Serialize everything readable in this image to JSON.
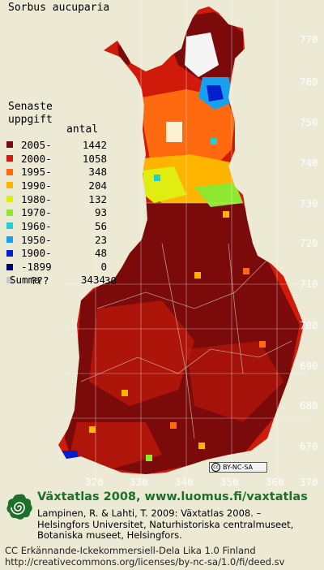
{
  "species": "Sorbus aucuparia",
  "legend": {
    "heading_line1": "Senaste",
    "heading_line2": "uppgift",
    "count_heading": "antal",
    "rows": [
      {
        "label": "2005-",
        "count": "1442",
        "color": "#7b0a0a"
      },
      {
        "label": "2000-",
        "count": "1058",
        "color": "#d01a0a"
      },
      {
        "label": "1995-",
        "count": "348",
        "color": "#ff6a10"
      },
      {
        "label": "1990-",
        "count": "204",
        "color": "#ffb400"
      },
      {
        "label": "1980-",
        "count": "132",
        "color": "#dfee10"
      },
      {
        "label": "1970-",
        "count": "93",
        "color": "#8fe830"
      },
      {
        "label": "1960-",
        "count": "56",
        "color": "#20d0d0"
      },
      {
        "label": "1950-",
        "count": "23",
        "color": "#18a0f0"
      },
      {
        "label": "1900-",
        "count": "48",
        "color": "#0020d0"
      },
      {
        "label": "-1899",
        "count": "0",
        "color": "#000070"
      },
      {
        "label": "???",
        "count": "30",
        "color": "#c8c8c8"
      }
    ],
    "summa_label": "Summa",
    "summa_value": "3434"
  },
  "grid": {
    "y_labels": [
      "770",
      "760",
      "750",
      "740",
      "730",
      "720",
      "710",
      "700",
      "690",
      "680",
      "670"
    ],
    "x_labels": [
      "320",
      "330",
      "340",
      "350",
      "360",
      "370"
    ]
  },
  "colors": {
    "background": "#ece9d5",
    "map_dark_red": "#7b0a0a",
    "map_red": "#d01a0a",
    "footer_green": "#1e6f2a"
  },
  "cc_badge": {
    "text": "BY-NC-SA",
    "cc": "cc"
  },
  "footer": {
    "title": "Växtatlas 2008, www.luomus.fi/vaxtatlas",
    "ref_line1": "Lampinen, R. & Lahti, T. 2009: Växtatlas 2008. –",
    "ref_line2": "Helsingfors Universitet, Naturhistoriska centralmuseet,",
    "ref_line3": "Botaniska museet, Helsingfors.",
    "license_line1": "CC Erkännande-Ickekommersiell-Dela Lika 1.0 Finland",
    "license_line2": "http://creativecommons.org/licenses/by-nc-sa/1.0/fi/deed.sv"
  }
}
